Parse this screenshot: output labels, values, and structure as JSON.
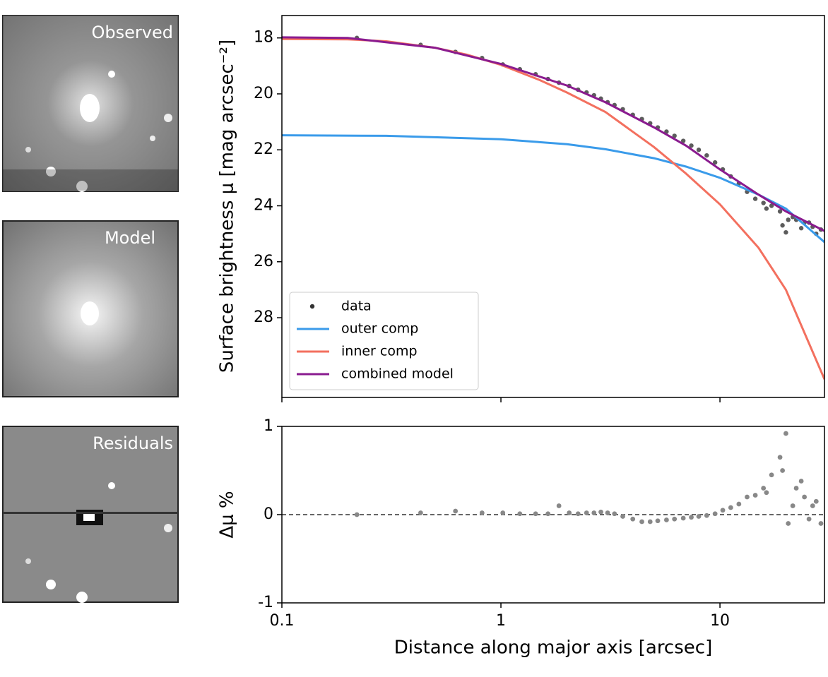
{
  "panels": [
    {
      "label": "Observed"
    },
    {
      "label": "Model"
    },
    {
      "label": "Residuals"
    }
  ],
  "chart_data": [
    {
      "type": "mixed",
      "ylabel": "Surface brightness μ [mag arcsec⁻²]",
      "log_x": true,
      "xlim": [
        0.1,
        30
      ],
      "xticks": [
        0.1,
        1,
        10
      ],
      "ylim": [
        30.85,
        17.2
      ],
      "yticks": [
        18,
        20,
        22,
        24,
        26,
        28
      ],
      "legend": "lower left",
      "series": [
        {
          "name": "data",
          "type": "scatter",
          "color": "#333333",
          "x": [
            0.22,
            0.43,
            0.62,
            0.82,
            1.02,
            1.22,
            1.44,
            1.64,
            1.84,
            2.05,
            2.25,
            2.46,
            2.66,
            2.86,
            3.07,
            3.3,
            3.6,
            4.0,
            4.4,
            4.8,
            5.2,
            5.7,
            6.2,
            6.8,
            7.4,
            8.0,
            8.7,
            9.5,
            10.3,
            11.2,
            12.2,
            13.3,
            14.5,
            15.8,
            17.2,
            18.8,
            20.5,
            22.3,
            24.3,
            26.5,
            28.9,
            16.3,
            19.3,
            20.0,
            21.5,
            23.5,
            25.5,
            27.5
          ],
          "values": [
            18.0,
            18.25,
            18.5,
            18.72,
            18.95,
            19.12,
            19.3,
            19.47,
            19.6,
            19.72,
            19.85,
            19.95,
            20.05,
            20.17,
            20.3,
            20.4,
            20.55,
            20.75,
            20.9,
            21.05,
            21.2,
            21.35,
            21.5,
            21.68,
            21.85,
            22.0,
            22.2,
            22.45,
            22.7,
            22.95,
            23.2,
            23.5,
            23.75,
            23.9,
            24.0,
            24.2,
            24.5,
            24.5,
            24.6,
            24.75,
            24.85,
            24.1,
            24.7,
            24.95,
            24.4,
            24.8,
            24.6,
            25.0
          ]
        },
        {
          "name": "outer comp",
          "type": "line",
          "color": "#3a9bea",
          "x": [
            0.1,
            0.3,
            1,
            2,
            3,
            5,
            7,
            10,
            15,
            20,
            30
          ],
          "values": [
            21.48,
            21.5,
            21.62,
            21.8,
            21.98,
            22.3,
            22.6,
            23.0,
            23.6,
            24.1,
            25.3
          ]
        },
        {
          "name": "inner comp",
          "type": "line",
          "color": "#f3705f",
          "x": [
            0.1,
            0.2,
            0.3,
            0.5,
            0.7,
            1,
            1.5,
            2,
            3,
            5,
            7,
            10,
            15,
            20,
            30
          ],
          "values": [
            18.04,
            18.05,
            18.12,
            18.35,
            18.6,
            18.96,
            19.5,
            19.95,
            20.65,
            21.9,
            22.85,
            23.95,
            25.5,
            27.0,
            30.2
          ]
        },
        {
          "name": "combined model",
          "type": "line",
          "color": "#8a1b8f",
          "x": [
            0.1,
            0.2,
            0.5,
            1,
            2,
            3,
            5,
            7,
            10,
            15,
            20,
            30
          ],
          "values": [
            17.98,
            18.0,
            18.35,
            18.93,
            19.7,
            20.3,
            21.2,
            21.85,
            22.7,
            23.6,
            24.2,
            24.9
          ]
        }
      ]
    },
    {
      "type": "scatter",
      "xlabel": "Distance along major axis [arcsec]",
      "ylabel": "Δμ %",
      "log_x": true,
      "xlim": [
        0.1,
        30
      ],
      "xticks": [
        0.1,
        1,
        10
      ],
      "ylim": [
        -1,
        1
      ],
      "yticks": [
        -1,
        0,
        1
      ],
      "hline": 0,
      "color": "#888888",
      "x": [
        0.22,
        0.43,
        0.62,
        0.82,
        1.02,
        1.22,
        1.44,
        1.64,
        1.84,
        2.05,
        2.25,
        2.46,
        2.66,
        2.86,
        3.07,
        3.3,
        3.6,
        4.0,
        4.4,
        4.8,
        5.2,
        5.7,
        6.2,
        6.8,
        7.4,
        8.0,
        8.7,
        9.5,
        10.3,
        11.2,
        12.2,
        13.3,
        14.5,
        15.8,
        17.2,
        18.8,
        20.5,
        22.3,
        24.3,
        26.5,
        28.9,
        16.3,
        19.3,
        20.0,
        21.5,
        23.5,
        25.5,
        27.5
      ],
      "values": [
        0.0,
        0.02,
        0.04,
        0.02,
        0.02,
        0.01,
        0.01,
        0.01,
        0.1,
        0.02,
        0.01,
        0.02,
        0.02,
        0.03,
        0.02,
        0.01,
        -0.02,
        -0.05,
        -0.08,
        -0.08,
        -0.07,
        -0.06,
        -0.05,
        -0.04,
        -0.03,
        -0.02,
        -0.01,
        0.01,
        0.05,
        0.08,
        0.12,
        0.2,
        0.22,
        0.3,
        0.45,
        0.65,
        -0.1,
        0.3,
        0.2,
        0.1,
        -0.1,
        0.25,
        0.5,
        0.92,
        0.1,
        0.38,
        -0.05,
        0.15
      ]
    }
  ]
}
